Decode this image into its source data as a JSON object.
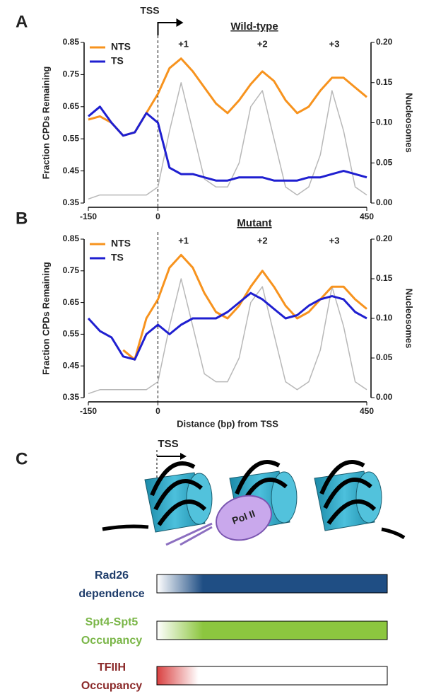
{
  "chart_data": [
    {
      "type": "line",
      "panel": "A",
      "title": "Wild-type",
      "annotations": {
        "tss": "TSS",
        "peaks": [
          "+1",
          "+2",
          "+3"
        ]
      },
      "y_label": "Fraction CPDs Remaining",
      "y2_label": "Nucleosomes",
      "x": [
        -150,
        -125,
        -100,
        -75,
        -50,
        -25,
        0,
        25,
        50,
        75,
        100,
        125,
        150,
        175,
        200,
        225,
        250,
        275,
        300,
        325,
        350,
        375,
        400,
        425,
        450
      ],
      "series": [
        {
          "name": "NTS",
          "color": "#f7931e",
          "values": [
            0.61,
            0.62,
            0.6,
            0.56,
            0.57,
            0.63,
            0.69,
            0.77,
            0.8,
            0.76,
            0.71,
            0.66,
            0.63,
            0.67,
            0.72,
            0.76,
            0.73,
            0.67,
            0.63,
            0.65,
            0.7,
            0.74,
            0.74,
            0.71,
            0.68
          ]
        },
        {
          "name": "TS",
          "color": "#1f1fd0",
          "values": [
            0.62,
            0.65,
            0.6,
            0.56,
            0.57,
            0.63,
            0.6,
            0.46,
            0.44,
            0.44,
            0.43,
            0.42,
            0.42,
            0.43,
            0.43,
            0.43,
            0.42,
            0.42,
            0.42,
            0.43,
            0.43,
            0.44,
            0.45,
            0.44,
            0.43
          ]
        },
        {
          "color": "#b8b8b8",
          "axis": "y2",
          "values": [
            0.005,
            0.01,
            0.01,
            0.01,
            0.01,
            0.01,
            0.02,
            0.09,
            0.15,
            0.09,
            0.03,
            0.02,
            0.02,
            0.05,
            0.12,
            0.14,
            0.08,
            0.02,
            0.01,
            0.02,
            0.06,
            0.14,
            0.09,
            0.02,
            0.01
          ]
        }
      ],
      "xlim": [
        -150,
        450
      ],
      "xticks": [
        -150,
        0,
        450
      ],
      "ylim": [
        0.35,
        0.85
      ],
      "yticks": [
        0.35,
        0.45,
        0.55,
        0.65,
        0.75,
        0.85
      ],
      "y2lim": [
        0,
        0.2
      ],
      "y2ticks": [
        {
          "value": 0,
          "label": "0.00"
        },
        0.05,
        {
          "value": 0.1,
          "label": "0.10"
        },
        0.15,
        {
          "value": 0.2,
          "label": "0.20"
        }
      ]
    },
    {
      "type": "line",
      "panel": "B",
      "title": "Mutant",
      "annotations": {
        "peaks": [
          "+1",
          "+2",
          "+3"
        ]
      },
      "y_label": "Fraction CPDs Remaining",
      "y2_label": "Nucleosomes",
      "x_label": "Distance (bp) from TSS",
      "x": [
        -150,
        -125,
        -100,
        -75,
        -50,
        -25,
        0,
        25,
        50,
        75,
        100,
        125,
        150,
        175,
        200,
        225,
        250,
        275,
        300,
        325,
        350,
        375,
        400,
        425,
        450
      ],
      "series": [
        {
          "name": "NTS",
          "color": "#f7931e",
          "values": [
            null,
            null,
            null,
            0.5,
            0.47,
            0.6,
            0.66,
            0.76,
            0.8,
            0.76,
            0.68,
            0.62,
            0.6,
            0.64,
            0.7,
            0.75,
            0.7,
            0.64,
            0.6,
            0.62,
            0.66,
            0.7,
            0.7,
            0.66,
            0.63
          ]
        },
        {
          "name": "TS",
          "color": "#1f1fd0",
          "values": [
            0.6,
            0.56,
            0.54,
            0.48,
            0.47,
            0.55,
            0.58,
            0.55,
            0.58,
            0.6,
            0.6,
            0.6,
            0.62,
            0.65,
            0.68,
            0.66,
            0.63,
            0.6,
            0.61,
            0.64,
            0.66,
            0.67,
            0.66,
            0.62,
            0.6
          ]
        },
        {
          "color": "#b8b8b8",
          "axis": "y2",
          "values": [
            0.005,
            0.01,
            0.01,
            0.01,
            0.01,
            0.01,
            0.02,
            0.09,
            0.15,
            0.09,
            0.03,
            0.02,
            0.02,
            0.05,
            0.12,
            0.14,
            0.08,
            0.02,
            0.01,
            0.02,
            0.06,
            0.14,
            0.09,
            0.02,
            0.01
          ]
        }
      ],
      "xlim": [
        -150,
        450
      ],
      "xticks": [
        -150,
        0,
        450
      ],
      "ylim": [
        0.35,
        0.85
      ],
      "yticks": [
        0.35,
        0.45,
        0.55,
        0.65,
        0.75,
        0.85
      ],
      "y2lim": [
        0,
        0.2
      ],
      "y2ticks": [
        {
          "value": 0,
          "label": "0.00"
        },
        0.05,
        {
          "value": 0.1,
          "label": "0.10"
        },
        0.15,
        {
          "value": 0.2,
          "label": "0.20"
        }
      ]
    }
  ],
  "diagram": {
    "panel": "C",
    "tss": "TSS",
    "pol": "Pol II",
    "rows": [
      [
        "Rad26",
        "dependence"
      ],
      [
        "Spt4-Spt5",
        "Occupancy"
      ],
      [
        "TFIIH",
        "Occupancy"
      ]
    ]
  }
}
